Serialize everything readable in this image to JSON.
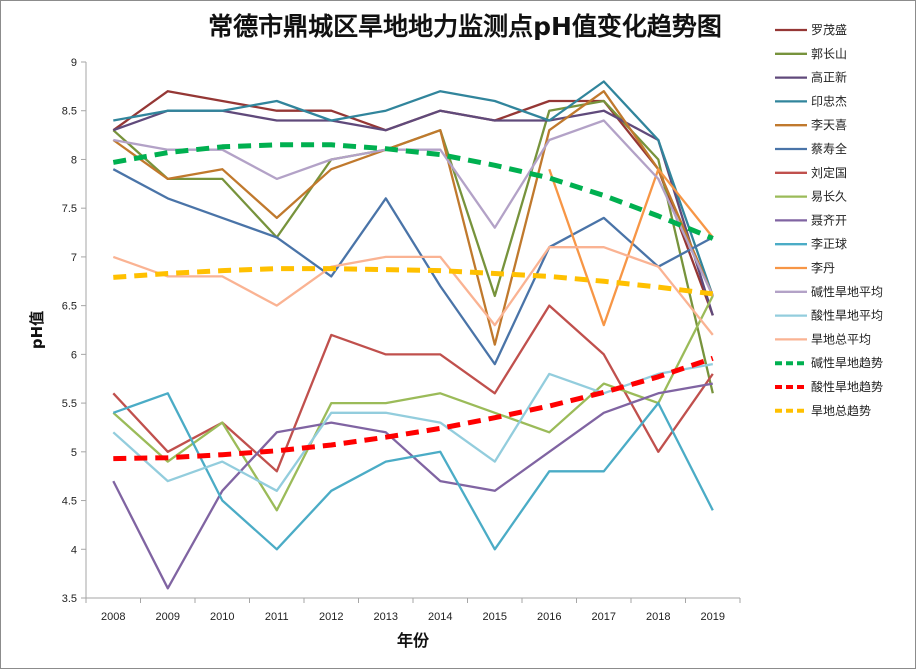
{
  "chart_data": {
    "type": "line",
    "title": "常德市鼎城区旱地地力监测点pH值变化趋势图",
    "xlabel": "年份",
    "ylabel": "pH值",
    "ylim": [
      3.5,
      9
    ],
    "yticks": [
      "3.5",
      "4",
      "4.5",
      "5",
      "5.5",
      "6",
      "6.5",
      "7",
      "7.5",
      "8",
      "8.5",
      "9"
    ],
    "grid": false,
    "legend_position": "right",
    "categories": [
      "2008",
      "2009",
      "2010",
      "2011",
      "2012",
      "2013",
      "2014",
      "2015",
      "2016",
      "2017",
      "2018",
      "2019"
    ],
    "series": [
      {
        "name": "罗茂盛",
        "color": "#953735",
        "values": [
          8.3,
          8.7,
          8.6,
          8.5,
          8.5,
          8.3,
          8.5,
          8.4,
          8.6,
          8.6,
          7.9,
          6.4
        ]
      },
      {
        "name": "郭长山",
        "color": "#77933c",
        "values": [
          8.3,
          7.8,
          7.8,
          7.2,
          8.0,
          8.1,
          8.3,
          6.6,
          8.5,
          8.6,
          8.0,
          5.6
        ]
      },
      {
        "name": "高正新",
        "color": "#604a7b",
        "values": [
          8.3,
          8.5,
          8.5,
          8.4,
          8.4,
          8.3,
          8.5,
          8.4,
          8.4,
          8.5,
          8.2,
          6.4
        ]
      },
      {
        "name": "印忠杰",
        "color": "#31859c",
        "values": [
          8.4,
          8.5,
          8.5,
          8.6,
          8.4,
          8.5,
          8.7,
          8.6,
          8.4,
          8.8,
          8.2,
          6.6
        ]
      },
      {
        "name": "李天喜",
        "color": "#c0792d",
        "values": [
          8.2,
          7.8,
          7.9,
          7.4,
          7.9,
          8.1,
          8.3,
          6.1,
          8.3,
          8.7,
          7.9,
          6.6
        ]
      },
      {
        "name": "蔡寿全",
        "color": "#4a74a8",
        "values": [
          7.9,
          7.6,
          7.4,
          7.2,
          6.8,
          7.6,
          6.7,
          5.9,
          7.1,
          7.4,
          6.9,
          7.2
        ]
      },
      {
        "name": "刘定国",
        "color": "#c0504d",
        "values": [
          5.6,
          5.0,
          5.3,
          4.8,
          6.2,
          6.0,
          6.0,
          5.6,
          6.5,
          6.0,
          5.0,
          5.8
        ]
      },
      {
        "name": "易长久",
        "color": "#9bbb59",
        "values": [
          5.4,
          4.9,
          5.3,
          4.4,
          5.5,
          5.5,
          5.6,
          5.4,
          5.2,
          5.7,
          5.5,
          6.6
        ]
      },
      {
        "name": "聂齐开",
        "color": "#8064a2",
        "values": [
          4.7,
          3.6,
          4.6,
          5.2,
          5.3,
          5.2,
          4.7,
          4.6,
          5.0,
          5.4,
          5.6,
          5.7
        ]
      },
      {
        "name": "李正球",
        "color": "#4bacc6",
        "values": [
          5.4,
          5.6,
          4.5,
          4.0,
          4.6,
          4.9,
          5.0,
          4.0,
          4.8,
          4.8,
          5.5,
          4.4
        ]
      },
      {
        "name": "李丹",
        "color": "#f79646",
        "values": [
          null,
          null,
          null,
          null,
          null,
          null,
          null,
          null,
          7.9,
          6.3,
          7.9,
          7.2
        ]
      },
      {
        "name": "碱性旱地平均",
        "color": "#b3a2c7",
        "values": [
          8.2,
          8.1,
          8.1,
          7.8,
          8.0,
          8.1,
          8.1,
          7.3,
          8.2,
          8.4,
          7.8,
          6.6
        ]
      },
      {
        "name": "酸性旱地平均",
        "color": "#93cddd",
        "values": [
          5.2,
          4.7,
          4.9,
          4.6,
          5.4,
          5.4,
          5.3,
          4.9,
          5.8,
          5.6,
          5.8,
          5.9
        ]
      },
      {
        "name": "旱地总平均",
        "color": "#fab393",
        "values": [
          7.0,
          6.8,
          6.8,
          6.5,
          6.9,
          7.0,
          7.0,
          6.3,
          7.1,
          7.1,
          6.9,
          6.2
        ]
      },
      {
        "name": "碱性旱地趋势",
        "color": "#00b050",
        "dashed": true,
        "values": [
          7.97,
          8.07,
          8.13,
          8.15,
          8.15,
          8.11,
          8.05,
          7.94,
          7.81,
          7.63,
          7.42,
          7.19
        ]
      },
      {
        "name": "酸性旱地趋势",
        "color": "#ff0000",
        "dashed": true,
        "values": [
          4.93,
          4.94,
          4.97,
          5.01,
          5.07,
          5.15,
          5.24,
          5.35,
          5.47,
          5.61,
          5.77,
          5.96
        ]
      },
      {
        "name": "旱地总趋势",
        "color": "#ffc000",
        "dashed": true,
        "values": [
          6.79,
          6.83,
          6.86,
          6.88,
          6.88,
          6.87,
          6.86,
          6.83,
          6.8,
          6.75,
          6.69,
          6.62
        ]
      }
    ]
  }
}
